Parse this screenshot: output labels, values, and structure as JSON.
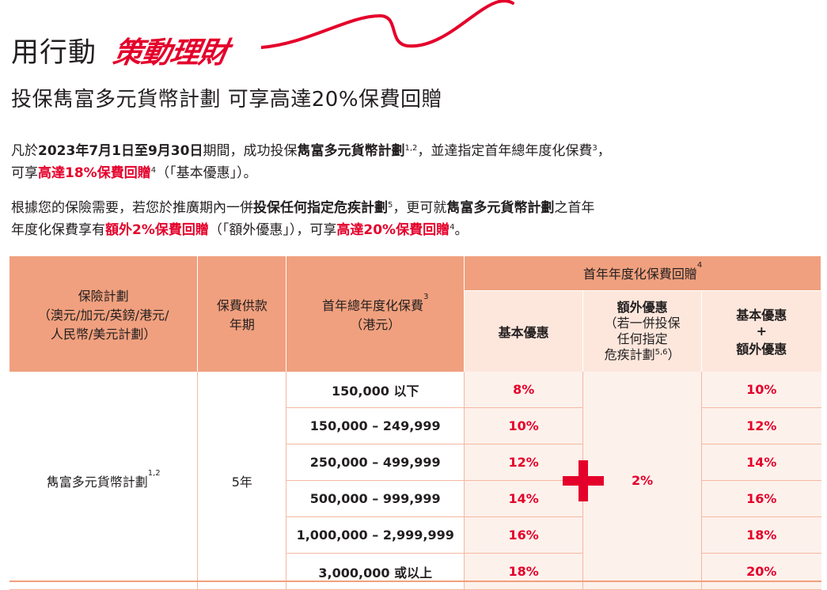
{
  "header": {
    "brand_prefix": "用行動",
    "brand_script": "策動理財",
    "subtitle": "投保雋富多元貨幣計劃  可享高達20%保費回贈"
  },
  "para1": {
    "t1": "凡於",
    "t2": "2023年7月1日至9月30日",
    "t3": "期間，成功投保",
    "t4": "雋富多元貨幣計劃",
    "sup1": "1,2",
    "t5": "，並達指定首年總年度化保費",
    "sup2": "3",
    "t6": "，",
    "t7": "可享",
    "t8": "高達18%保費回贈",
    "sup3": "4",
    "t9": "（「基本優惠」）。"
  },
  "para2": {
    "t1": "根據您的保險需要，若您於推廣期內一併",
    "t2": "投保任何指定危疾計劃",
    "sup1": "5",
    "t3": "，更可就",
    "t4": "雋富多元貨幣計劃",
    "t5": "之首年",
    "t6": "年度化保費享有",
    "t7": "額外2%保費回贈",
    "t8": "（「額外優惠」），可享",
    "t9": "高達20%保費回贈",
    "sup2": "4",
    "t10": "。"
  },
  "table": {
    "col_plan_l1": "保險計劃",
    "col_plan_l2": "（澳元/加元/英鎊/港元/",
    "col_plan_l3": "人民幣/美元計劃）",
    "col_term_l1": "保費供款",
    "col_term_l2": "年期",
    "col_premium_l1": "首年總年度化保費",
    "col_premium_sup": "3",
    "col_premium_l2": "（港元）",
    "col_rebate": "首年年度化保費回贈",
    "col_rebate_sup": "4",
    "sub_basic": "基本優惠",
    "sub_extra_l1": "額外優惠",
    "sub_extra_l2": "（若一併投保",
    "sub_extra_l3": "任何指定",
    "sub_extra_l4": "危疾計劃",
    "sub_extra_sup": "5,6",
    "sub_extra_l5": "）",
    "sub_total_l1": "基本優惠",
    "sub_total_l2": "+",
    "sub_total_l3": "額外優惠",
    "plan_name": "雋富多元貨幣計劃",
    "plan_sup": "1,2",
    "term": "5年",
    "extra_value": "2%",
    "rows": [
      {
        "range": "150,000 以下",
        "basic": "8%",
        "total": "10%"
      },
      {
        "range": "150,000 – 249,999",
        "basic": "10%",
        "total": "12%"
      },
      {
        "range": "250,000 – 499,999",
        "basic": "12%",
        "total": "14%"
      },
      {
        "range": "500,000 – 999,999",
        "basic": "14%",
        "total": "16%"
      },
      {
        "range": "1,000,000 – 2,999,999",
        "basic": "16%",
        "total": "18%"
      },
      {
        "range": "3,000,000 或以上",
        "basic": "18%",
        "total": "20%"
      }
    ]
  },
  "colors": {
    "accent_red": "#e4002b",
    "header_orange": "#f0a07e",
    "light_peach": "#fdf1ec"
  }
}
